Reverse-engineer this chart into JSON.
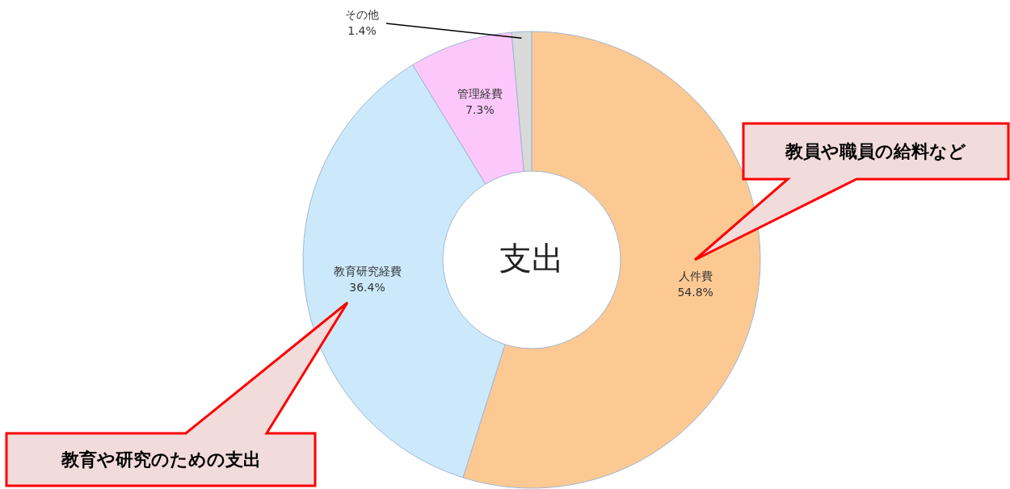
{
  "chart_data": {
    "type": "donut",
    "title": "支出",
    "categories": [
      "人件費",
      "教育研究経費",
      "管理経費",
      "その他"
    ],
    "values": [
      54.8,
      36.4,
      7.3,
      1.4
    ],
    "value_labels": [
      "54.8%",
      "36.4%",
      "7.3%",
      "1.4%"
    ],
    "colors": [
      "#fcc993",
      "#cce9fb",
      "#fcc8fc",
      "#d9d9d9"
    ],
    "annotations": [
      "教員や職員の給料など",
      "教育や研究のための支出"
    ]
  }
}
